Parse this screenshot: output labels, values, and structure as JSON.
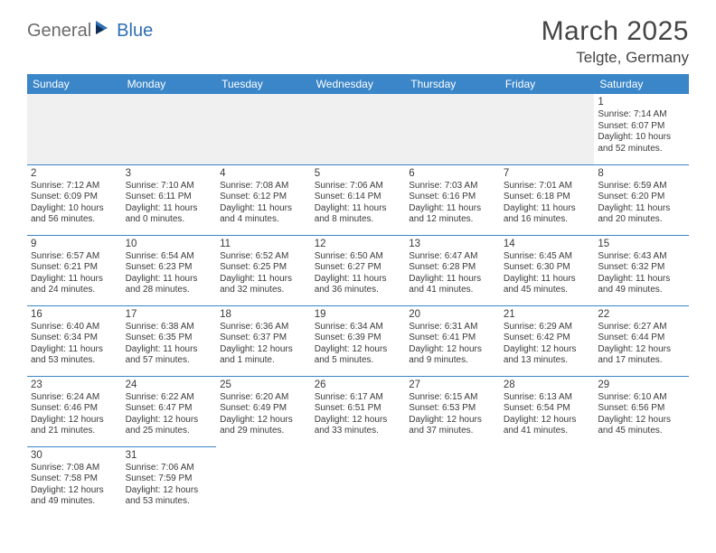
{
  "logo": {
    "part1": "General",
    "part2": "Blue"
  },
  "title": "March 2025",
  "location": "Telgte, Germany",
  "header_bg": "#3a86c8",
  "header_fg": "#ffffff",
  "rule_color": "#3a86c8",
  "empty_bg": "#f0f0f0",
  "weekdays": [
    "Sunday",
    "Monday",
    "Tuesday",
    "Wednesday",
    "Thursday",
    "Friday",
    "Saturday"
  ],
  "weeks": [
    [
      null,
      null,
      null,
      null,
      null,
      null,
      {
        "n": "1",
        "sr": "Sunrise: 7:14 AM",
        "ss": "Sunset: 6:07 PM",
        "d1": "Daylight: 10 hours",
        "d2": "and 52 minutes."
      }
    ],
    [
      {
        "n": "2",
        "sr": "Sunrise: 7:12 AM",
        "ss": "Sunset: 6:09 PM",
        "d1": "Daylight: 10 hours",
        "d2": "and 56 minutes."
      },
      {
        "n": "3",
        "sr": "Sunrise: 7:10 AM",
        "ss": "Sunset: 6:11 PM",
        "d1": "Daylight: 11 hours",
        "d2": "and 0 minutes."
      },
      {
        "n": "4",
        "sr": "Sunrise: 7:08 AM",
        "ss": "Sunset: 6:12 PM",
        "d1": "Daylight: 11 hours",
        "d2": "and 4 minutes."
      },
      {
        "n": "5",
        "sr": "Sunrise: 7:06 AM",
        "ss": "Sunset: 6:14 PM",
        "d1": "Daylight: 11 hours",
        "d2": "and 8 minutes."
      },
      {
        "n": "6",
        "sr": "Sunrise: 7:03 AM",
        "ss": "Sunset: 6:16 PM",
        "d1": "Daylight: 11 hours",
        "d2": "and 12 minutes."
      },
      {
        "n": "7",
        "sr": "Sunrise: 7:01 AM",
        "ss": "Sunset: 6:18 PM",
        "d1": "Daylight: 11 hours",
        "d2": "and 16 minutes."
      },
      {
        "n": "8",
        "sr": "Sunrise: 6:59 AM",
        "ss": "Sunset: 6:20 PM",
        "d1": "Daylight: 11 hours",
        "d2": "and 20 minutes."
      }
    ],
    [
      {
        "n": "9",
        "sr": "Sunrise: 6:57 AM",
        "ss": "Sunset: 6:21 PM",
        "d1": "Daylight: 11 hours",
        "d2": "and 24 minutes."
      },
      {
        "n": "10",
        "sr": "Sunrise: 6:54 AM",
        "ss": "Sunset: 6:23 PM",
        "d1": "Daylight: 11 hours",
        "d2": "and 28 minutes."
      },
      {
        "n": "11",
        "sr": "Sunrise: 6:52 AM",
        "ss": "Sunset: 6:25 PM",
        "d1": "Daylight: 11 hours",
        "d2": "and 32 minutes."
      },
      {
        "n": "12",
        "sr": "Sunrise: 6:50 AM",
        "ss": "Sunset: 6:27 PM",
        "d1": "Daylight: 11 hours",
        "d2": "and 36 minutes."
      },
      {
        "n": "13",
        "sr": "Sunrise: 6:47 AM",
        "ss": "Sunset: 6:28 PM",
        "d1": "Daylight: 11 hours",
        "d2": "and 41 minutes."
      },
      {
        "n": "14",
        "sr": "Sunrise: 6:45 AM",
        "ss": "Sunset: 6:30 PM",
        "d1": "Daylight: 11 hours",
        "d2": "and 45 minutes."
      },
      {
        "n": "15",
        "sr": "Sunrise: 6:43 AM",
        "ss": "Sunset: 6:32 PM",
        "d1": "Daylight: 11 hours",
        "d2": "and 49 minutes."
      }
    ],
    [
      {
        "n": "16",
        "sr": "Sunrise: 6:40 AM",
        "ss": "Sunset: 6:34 PM",
        "d1": "Daylight: 11 hours",
        "d2": "and 53 minutes."
      },
      {
        "n": "17",
        "sr": "Sunrise: 6:38 AM",
        "ss": "Sunset: 6:35 PM",
        "d1": "Daylight: 11 hours",
        "d2": "and 57 minutes."
      },
      {
        "n": "18",
        "sr": "Sunrise: 6:36 AM",
        "ss": "Sunset: 6:37 PM",
        "d1": "Daylight: 12 hours",
        "d2": "and 1 minute."
      },
      {
        "n": "19",
        "sr": "Sunrise: 6:34 AM",
        "ss": "Sunset: 6:39 PM",
        "d1": "Daylight: 12 hours",
        "d2": "and 5 minutes."
      },
      {
        "n": "20",
        "sr": "Sunrise: 6:31 AM",
        "ss": "Sunset: 6:41 PM",
        "d1": "Daylight: 12 hours",
        "d2": "and 9 minutes."
      },
      {
        "n": "21",
        "sr": "Sunrise: 6:29 AM",
        "ss": "Sunset: 6:42 PM",
        "d1": "Daylight: 12 hours",
        "d2": "and 13 minutes."
      },
      {
        "n": "22",
        "sr": "Sunrise: 6:27 AM",
        "ss": "Sunset: 6:44 PM",
        "d1": "Daylight: 12 hours",
        "d2": "and 17 minutes."
      }
    ],
    [
      {
        "n": "23",
        "sr": "Sunrise: 6:24 AM",
        "ss": "Sunset: 6:46 PM",
        "d1": "Daylight: 12 hours",
        "d2": "and 21 minutes."
      },
      {
        "n": "24",
        "sr": "Sunrise: 6:22 AM",
        "ss": "Sunset: 6:47 PM",
        "d1": "Daylight: 12 hours",
        "d2": "and 25 minutes."
      },
      {
        "n": "25",
        "sr": "Sunrise: 6:20 AM",
        "ss": "Sunset: 6:49 PM",
        "d1": "Daylight: 12 hours",
        "d2": "and 29 minutes."
      },
      {
        "n": "26",
        "sr": "Sunrise: 6:17 AM",
        "ss": "Sunset: 6:51 PM",
        "d1": "Daylight: 12 hours",
        "d2": "and 33 minutes."
      },
      {
        "n": "27",
        "sr": "Sunrise: 6:15 AM",
        "ss": "Sunset: 6:53 PM",
        "d1": "Daylight: 12 hours",
        "d2": "and 37 minutes."
      },
      {
        "n": "28",
        "sr": "Sunrise: 6:13 AM",
        "ss": "Sunset: 6:54 PM",
        "d1": "Daylight: 12 hours",
        "d2": "and 41 minutes."
      },
      {
        "n": "29",
        "sr": "Sunrise: 6:10 AM",
        "ss": "Sunset: 6:56 PM",
        "d1": "Daylight: 12 hours",
        "d2": "and 45 minutes."
      }
    ],
    [
      {
        "n": "30",
        "sr": "Sunrise: 7:08 AM",
        "ss": "Sunset: 7:58 PM",
        "d1": "Daylight: 12 hours",
        "d2": "and 49 minutes."
      },
      {
        "n": "31",
        "sr": "Sunrise: 7:06 AM",
        "ss": "Sunset: 7:59 PM",
        "d1": "Daylight: 12 hours",
        "d2": "and 53 minutes."
      },
      null,
      null,
      null,
      null,
      null
    ]
  ]
}
